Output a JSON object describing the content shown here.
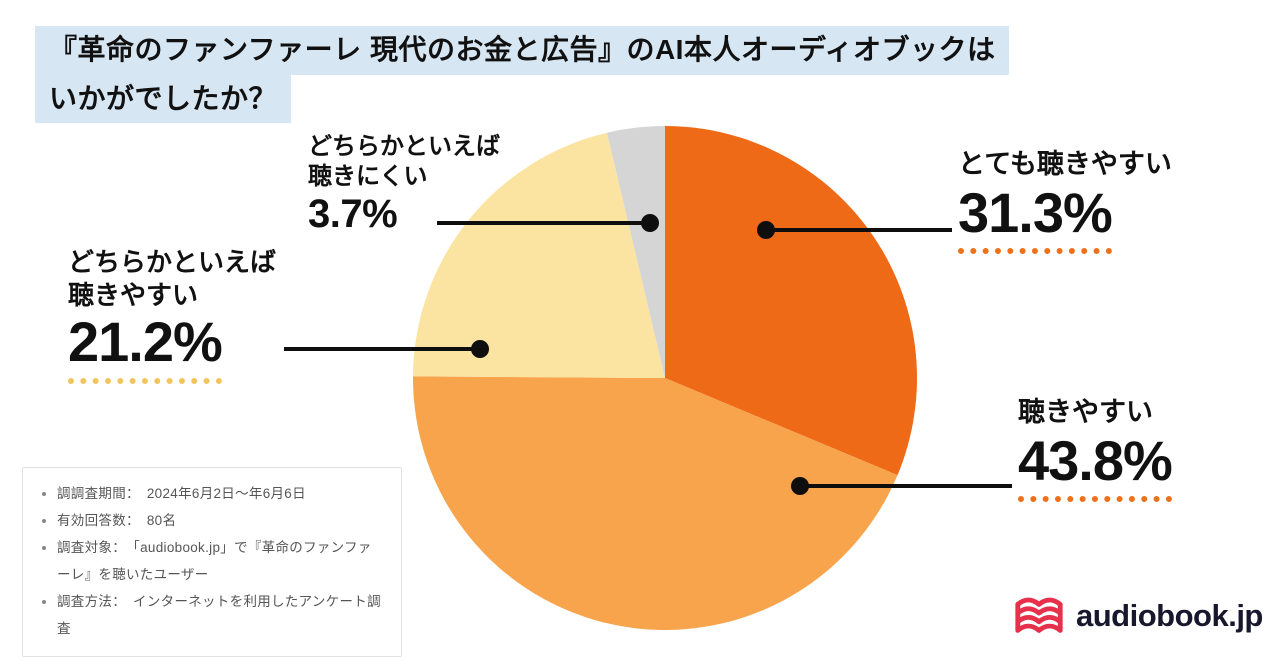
{
  "title": {
    "line1": "『革命のファンファーレ 現代のお金と広告』のAI本人オーディオブックは",
    "line2": "いかがでしたか？",
    "highlight_color": "#d7e6f3"
  },
  "chart_data": {
    "type": "pie",
    "title": "『革命のファンファーレ 現代のお金と広告』のAI本人オーディオブックはいかがでしたか？",
    "direction": "clockwise",
    "start_angle_deg": 0,
    "legend_position": "callout-labels",
    "segments": [
      {
        "label": "とても聴きやすい",
        "value": 31.3,
        "display": "31.3%",
        "color": "#ef6a17"
      },
      {
        "label": "聴きやすい",
        "value": 43.8,
        "display": "43.8%",
        "color": "#f8a44c"
      },
      {
        "label": "どちらかといえば聴きやすい",
        "value": 21.2,
        "display": "21.2%",
        "color": "#fbe3a1"
      },
      {
        "label": "どちらかといえば聴きにくい",
        "value": 3.7,
        "display": "3.7%",
        "color": "#d5d5d5"
      }
    ],
    "accent_colors": {
      "underline_orange": "#ee7018",
      "underline_gold": "#f2c45c",
      "leader_line": "#0e0e0e"
    }
  },
  "survey": {
    "notes": [
      "調調査期間：　2024年6月2日～年6月6日",
      "有効回答数：　80名",
      "調査対象：　「audiobook.jp」で『革命のファンファーレ』を聴いたユーザー",
      "調査方法：　インターネットを利用したアンケート調査"
    ]
  },
  "logo": {
    "text": "audiobook.jp",
    "icon_color": "#e7304b",
    "text_color": "#17172e"
  }
}
